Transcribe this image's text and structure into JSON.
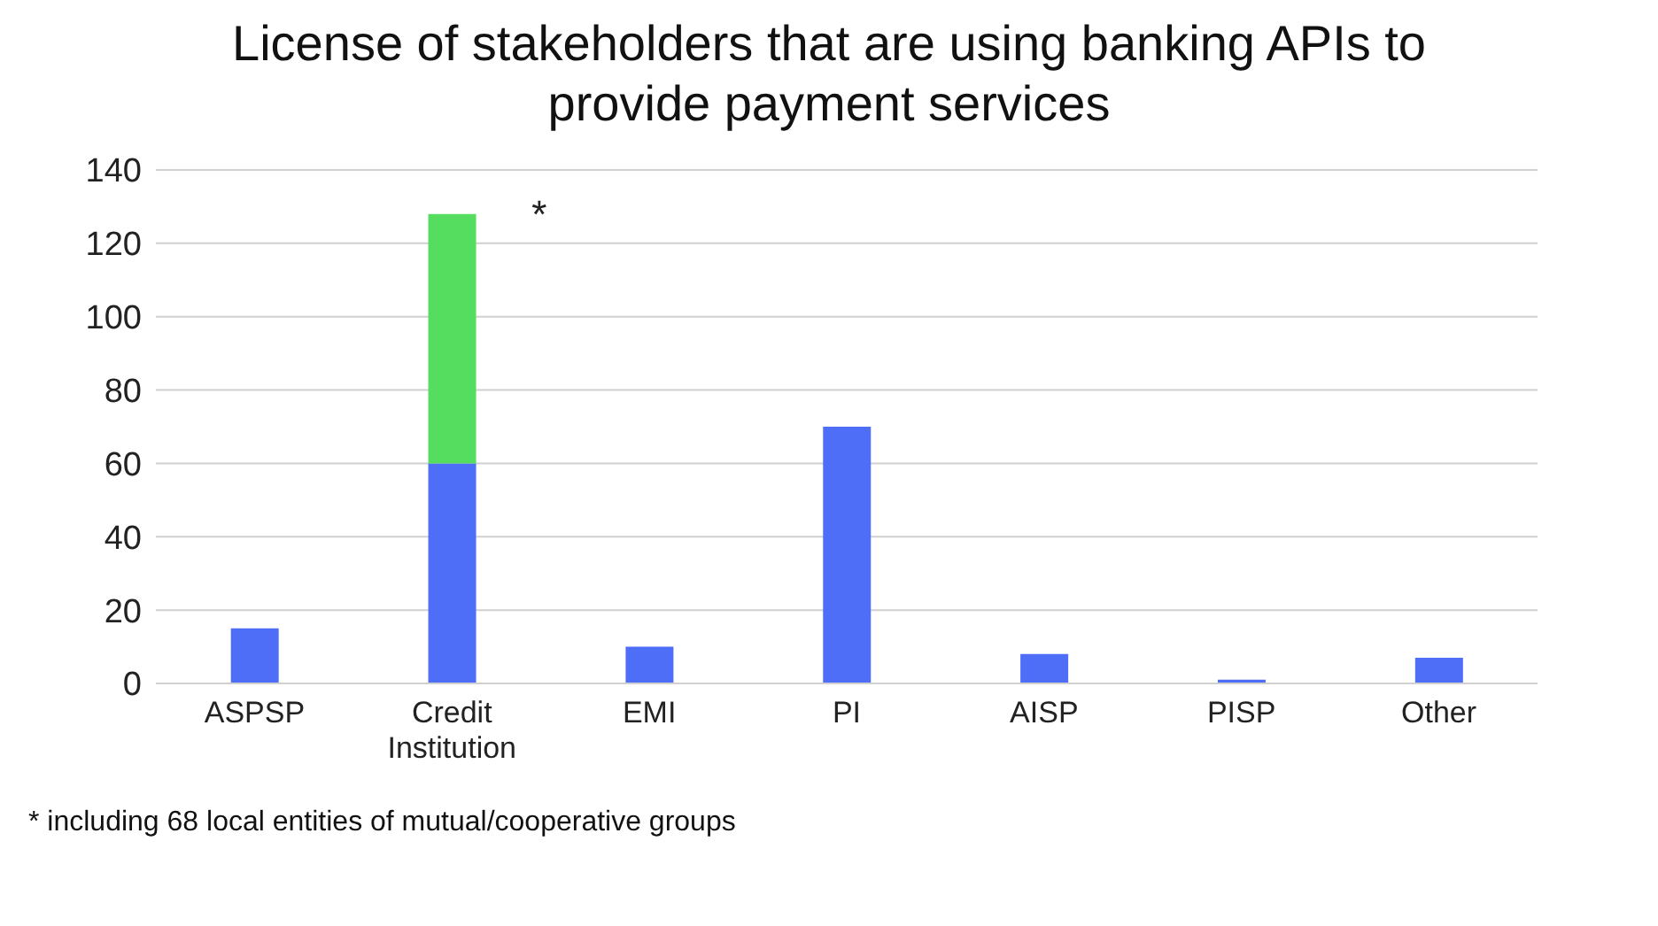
{
  "chart_data": {
    "type": "bar",
    "title": "License of stakeholders that are using banking APIs to provide payment services",
    "categories": [
      "ASPSP",
      "Credit Institution",
      "EMI",
      "PI",
      "AISP",
      "PISP",
      "Other"
    ],
    "stacked": true,
    "series": [
      {
        "color": "#4f6ef7",
        "values": [
          15,
          60,
          10,
          70,
          8,
          1,
          7
        ]
      },
      {
        "color": "#55dd60",
        "values": [
          null,
          68,
          null,
          null,
          null,
          null,
          null
        ]
      }
    ],
    "ylim": [
      0,
      140
    ],
    "yticks": [
      0,
      20,
      40,
      60,
      80,
      100,
      120,
      140
    ],
    "grid": "y",
    "annotations": [
      {
        "text": "*",
        "x": "Credit Institution",
        "y": 128
      },
      "* including 68 local entities of mutual/cooperative groups"
    ]
  }
}
